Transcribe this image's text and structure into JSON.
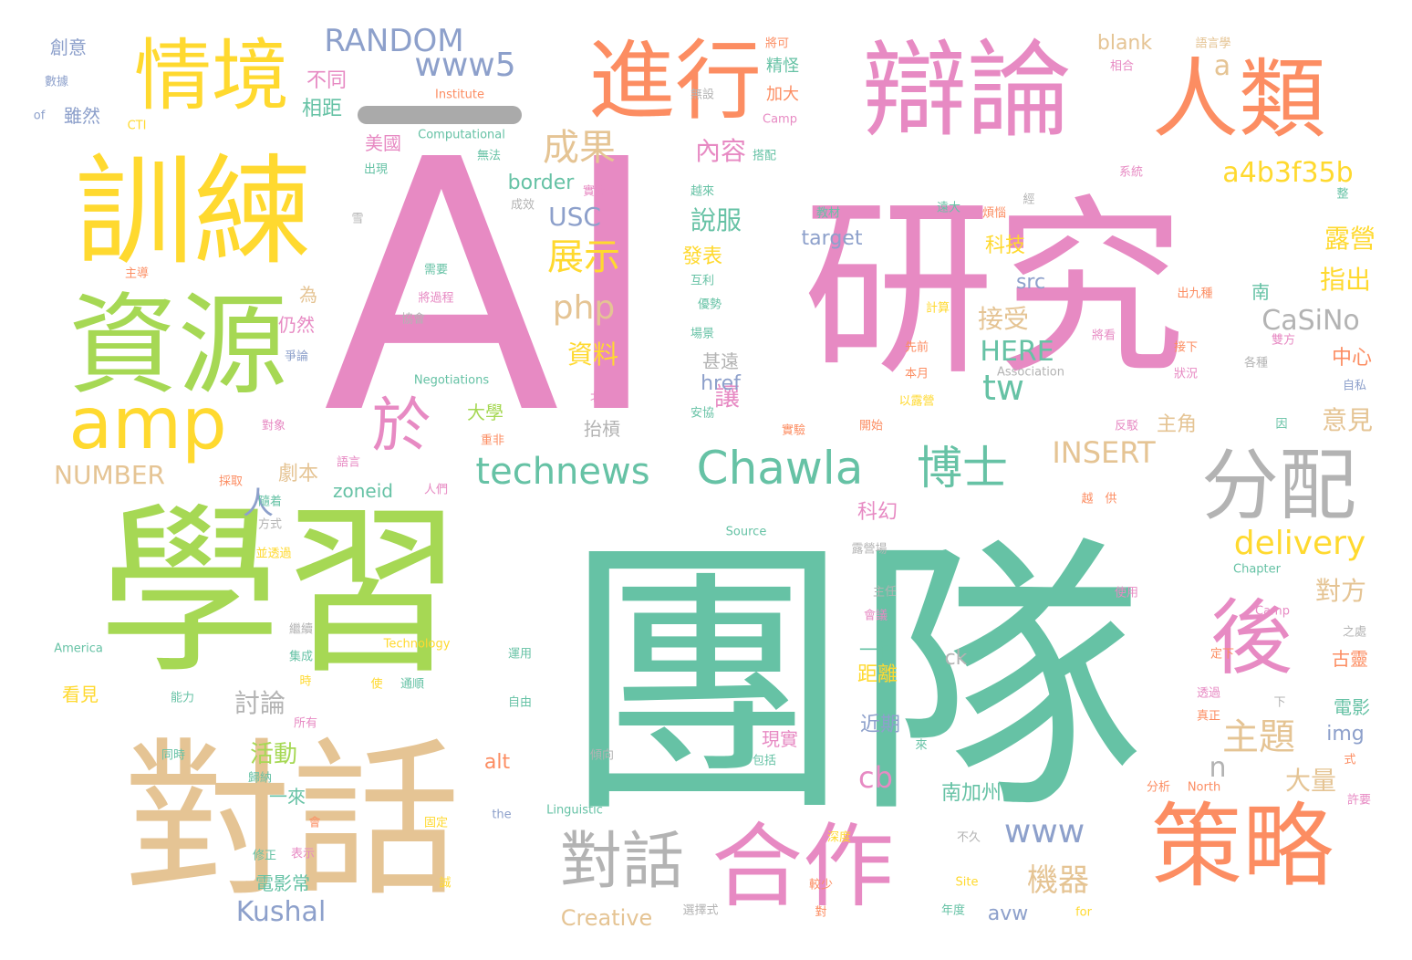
{
  "colors": {
    "teal": "#66c2a5",
    "orange": "#fc8d62",
    "blue": "#8da0cb",
    "pink": "#e78ac3",
    "green": "#a6d854",
    "yellow": "#ffd92f",
    "tan": "#e5c494",
    "gray": "#b3b3b3"
  },
  "words": [
    {
      "t": "AI",
      "c": "pink"
    },
    {
      "t": "團隊",
      "c": "teal"
    },
    {
      "t": "研究",
      "c": "pink"
    },
    {
      "t": "學習",
      "c": "green"
    },
    {
      "t": "訓練",
      "c": "yellow"
    },
    {
      "t": "對話",
      "c": "tan"
    },
    {
      "t": "辯論",
      "c": "pink"
    },
    {
      "t": "資源",
      "c": "green"
    },
    {
      "t": "人類",
      "c": "orange"
    },
    {
      "t": "進行",
      "c": "orange"
    },
    {
      "t": "情境",
      "c": "yellow"
    },
    {
      "t": "策略",
      "c": "orange"
    },
    {
      "t": "合作",
      "c": "pink"
    },
    {
      "t": "分配",
      "c": "gray"
    },
    {
      "t": "amp",
      "c": "yellow"
    },
    {
      "t": "對話",
      "c": "gray"
    },
    {
      "t": "Chawla",
      "c": "teal"
    },
    {
      "t": "後",
      "c": "pink"
    },
    {
      "t": "technews",
      "c": "teal"
    },
    {
      "t": "博士",
      "c": "teal"
    },
    {
      "t": "於",
      "c": "pink"
    },
    {
      "t": "www5",
      "c": "blue"
    },
    {
      "t": "RANDOM",
      "c": "blue"
    },
    {
      "t": "a4b3f35b",
      "c": "yellow"
    },
    {
      "t": "delivery",
      "c": "yellow"
    },
    {
      "t": "php",
      "c": "tan"
    },
    {
      "t": "主題",
      "c": "tan"
    },
    {
      "t": "www",
      "c": "blue"
    },
    {
      "t": "INSERT",
      "c": "tan"
    },
    {
      "t": "tw",
      "c": "teal"
    },
    {
      "t": "機器",
      "c": "tan"
    },
    {
      "t": "CaSiNo",
      "c": "gray"
    },
    {
      "t": "成果",
      "c": "tan"
    },
    {
      "t": "展示",
      "c": "yellow"
    },
    {
      "t": "a",
      "c": "tan"
    },
    {
      "t": "HERE",
      "c": "teal"
    },
    {
      "t": "Kushal",
      "c": "blue"
    },
    {
      "t": "NUMBER",
      "c": "tan"
    },
    {
      "t": "人",
      "c": "blue"
    },
    {
      "t": "cb",
      "c": "pink"
    },
    {
      "t": "USC",
      "c": "blue"
    },
    {
      "t": "說服",
      "c": "teal"
    },
    {
      "t": "內容",
      "c": "pink"
    },
    {
      "t": "露營",
      "c": "yellow"
    },
    {
      "t": "指出",
      "c": "yellow"
    },
    {
      "t": "大量",
      "c": "tan"
    },
    {
      "t": "對方",
      "c": "tan"
    },
    {
      "t": "意見",
      "c": "tan"
    },
    {
      "t": "主角",
      "c": "tan"
    },
    {
      "t": "資料",
      "c": "yellow"
    },
    {
      "t": "接受",
      "c": "tan"
    },
    {
      "t": "n",
      "c": "gray"
    },
    {
      "t": "讓",
      "c": "pink"
    },
    {
      "t": "劇本",
      "c": "tan"
    },
    {
      "t": "討論",
      "c": "gray"
    },
    {
      "t": "活動",
      "c": "green"
    },
    {
      "t": "不同",
      "c": "pink"
    },
    {
      "t": "相距",
      "c": "teal"
    },
    {
      "t": "科技",
      "c": "yellow"
    },
    {
      "t": "發表",
      "c": "yellow"
    },
    {
      "t": "中心",
      "c": "orange"
    },
    {
      "t": "電影常",
      "c": "teal"
    },
    {
      "t": "南加州",
      "c": "teal"
    },
    {
      "t": "Creative",
      "c": "tan"
    },
    {
      "t": "zoneid",
      "c": "teal"
    },
    {
      "t": "border",
      "c": "teal"
    },
    {
      "t": "target",
      "c": "blue"
    },
    {
      "t": "blank",
      "c": "tan"
    },
    {
      "t": "src",
      "c": "blue"
    },
    {
      "t": "href",
      "c": "blue"
    },
    {
      "t": "img",
      "c": "blue"
    },
    {
      "t": "alt",
      "c": "orange"
    },
    {
      "t": "avw",
      "c": "blue"
    },
    {
      "t": "ck",
      "c": "gray"
    },
    {
      "t": "美國",
      "c": "pink"
    },
    {
      "t": "雖然",
      "c": "blue"
    },
    {
      "t": "創意",
      "c": "blue"
    },
    {
      "t": "大學",
      "c": "green"
    },
    {
      "t": "抬槓",
      "c": "gray"
    },
    {
      "t": "甚遠",
      "c": "gray"
    },
    {
      "t": "近期",
      "c": "blue"
    },
    {
      "t": "距離",
      "c": "yellow"
    },
    {
      "t": "現實",
      "c": "pink"
    },
    {
      "t": "科幻",
      "c": "pink"
    },
    {
      "t": "看見",
      "c": "yellow"
    },
    {
      "t": "一往",
      "c": "teal"
    },
    {
      "t": "古靈",
      "c": "orange"
    },
    {
      "t": "電影",
      "c": "teal"
    },
    {
      "t": "為",
      "c": "tan"
    },
    {
      "t": "仍然",
      "c": "pink"
    },
    {
      "t": "精怪",
      "c": "teal"
    },
    {
      "t": "加大",
      "c": "orange"
    },
    {
      "t": "南",
      "c": "teal"
    },
    {
      "t": "一來",
      "c": "teal"
    },
    {
      "t": "Computational",
      "c": "teal"
    },
    {
      "t": "Institute",
      "c": "orange"
    },
    {
      "t": "Negotiations",
      "c": "teal"
    },
    {
      "t": "Association",
      "c": "gray"
    },
    {
      "t": "Technology",
      "c": "yellow"
    },
    {
      "t": "America",
      "c": "teal"
    },
    {
      "t": "Linguistic",
      "c": "teal"
    },
    {
      "t": "Source",
      "c": "teal"
    },
    {
      "t": "Chapter",
      "c": "teal"
    },
    {
      "t": "North",
      "c": "orange"
    },
    {
      "t": "Camp",
      "c": "pink"
    },
    {
      "t": "CTI",
      "c": "yellow"
    },
    {
      "t": "Site",
      "c": "yellow"
    },
    {
      "t": "the",
      "c": "blue"
    },
    {
      "t": "for",
      "c": "yellow"
    },
    {
      "t": "of",
      "c": "blue"
    },
    {
      "t": "數據",
      "c": "blue"
    },
    {
      "t": "將可",
      "c": "orange"
    },
    {
      "t": "語言學",
      "c": "tan"
    },
    {
      "t": "相合",
      "c": "pink"
    },
    {
      "t": "無設",
      "c": "gray"
    },
    {
      "t": "搭配",
      "c": "teal"
    },
    {
      "t": "出現",
      "c": "teal"
    },
    {
      "t": "無法",
      "c": "teal"
    },
    {
      "t": "成效",
      "c": "gray"
    },
    {
      "t": "實際",
      "c": "pink"
    },
    {
      "t": "越來",
      "c": "teal"
    },
    {
      "t": "系統",
      "c": "pink"
    },
    {
      "t": "教材",
      "c": "teal"
    },
    {
      "t": "遠大",
      "c": "teal"
    },
    {
      "t": "煩惱",
      "c": "orange"
    },
    {
      "t": "經",
      "c": "gray"
    },
    {
      "t": "整",
      "c": "teal"
    },
    {
      "t": "雪",
      "c": "gray"
    },
    {
      "t": "主導",
      "c": "orange"
    },
    {
      "t": "需要",
      "c": "teal"
    },
    {
      "t": "將過程",
      "c": "pink"
    },
    {
      "t": "協會",
      "c": "gray"
    },
    {
      "t": "互利",
      "c": "teal"
    },
    {
      "t": "優勢",
      "c": "teal"
    },
    {
      "t": "計算",
      "c": "yellow"
    },
    {
      "t": "出九種",
      "c": "orange"
    },
    {
      "t": "將看",
      "c": "pink"
    },
    {
      "t": "雙方",
      "c": "pink"
    },
    {
      "t": "接下",
      "c": "orange"
    },
    {
      "t": "狀況",
      "c": "pink"
    },
    {
      "t": "各種",
      "c": "gray"
    },
    {
      "t": "自私",
      "c": "blue"
    },
    {
      "t": "場景",
      "c": "teal"
    },
    {
      "t": "先前",
      "c": "orange"
    },
    {
      "t": "本月",
      "c": "orange"
    },
    {
      "t": "以露營",
      "c": "yellow"
    },
    {
      "t": "爭論",
      "c": "blue"
    },
    {
      "t": "北美",
      "c": "pink"
    },
    {
      "t": "安協",
      "c": "teal"
    },
    {
      "t": "開始",
      "c": "orange"
    },
    {
      "t": "實驗",
      "c": "orange"
    },
    {
      "t": "反駁",
      "c": "pink"
    },
    {
      "t": "對象",
      "c": "pink"
    },
    {
      "t": "重非",
      "c": "orange"
    },
    {
      "t": "語言",
      "c": "pink"
    },
    {
      "t": "採取",
      "c": "orange"
    },
    {
      "t": "隨着",
      "c": "teal"
    },
    {
      "t": "人們",
      "c": "pink"
    },
    {
      "t": "越",
      "c": "orange"
    },
    {
      "t": "供",
      "c": "orange"
    },
    {
      "t": "方式",
      "c": "gray"
    },
    {
      "t": "並透過",
      "c": "yellow"
    },
    {
      "t": "露營場",
      "c": "gray"
    },
    {
      "t": "主任",
      "c": "gray"
    },
    {
      "t": "會議",
      "c": "pink"
    },
    {
      "t": "使用",
      "c": "pink"
    },
    {
      "t": "繼續",
      "c": "gray"
    },
    {
      "t": "集成",
      "c": "teal"
    },
    {
      "t": "時",
      "c": "yellow"
    },
    {
      "t": "使",
      "c": "yellow"
    },
    {
      "t": "通順",
      "c": "teal"
    },
    {
      "t": "運用",
      "c": "teal"
    },
    {
      "t": "自由",
      "c": "teal"
    },
    {
      "t": "定下",
      "c": "orange"
    },
    {
      "t": "之處",
      "c": "gray"
    },
    {
      "t": "透過",
      "c": "pink"
    },
    {
      "t": "真正",
      "c": "orange"
    },
    {
      "t": "下",
      "c": "gray"
    },
    {
      "t": "能力",
      "c": "teal"
    },
    {
      "t": "所有",
      "c": "pink"
    },
    {
      "t": "傾向",
      "c": "gray"
    },
    {
      "t": "包括",
      "c": "teal"
    },
    {
      "t": "來",
      "c": "teal"
    },
    {
      "t": "同時",
      "c": "teal"
    },
    {
      "t": "歸納",
      "c": "teal"
    },
    {
      "t": "固定",
      "c": "yellow"
    },
    {
      "t": "分析",
      "c": "orange"
    },
    {
      "t": "許要",
      "c": "pink"
    },
    {
      "t": "式",
      "c": "orange"
    },
    {
      "t": "會",
      "c": "orange"
    },
    {
      "t": "修正",
      "c": "teal"
    },
    {
      "t": "表示",
      "c": "pink"
    },
    {
      "t": "不久",
      "c": "gray"
    },
    {
      "t": "深度",
      "c": "yellow"
    },
    {
      "t": "較少",
      "c": "orange"
    },
    {
      "t": "誠",
      "c": "yellow"
    },
    {
      "t": "年度",
      "c": "teal"
    },
    {
      "t": "對",
      "c": "orange"
    },
    {
      "t": "選擇式",
      "c": "gray"
    },
    {
      "t": "因",
      "c": "teal"
    }
  ]
}
